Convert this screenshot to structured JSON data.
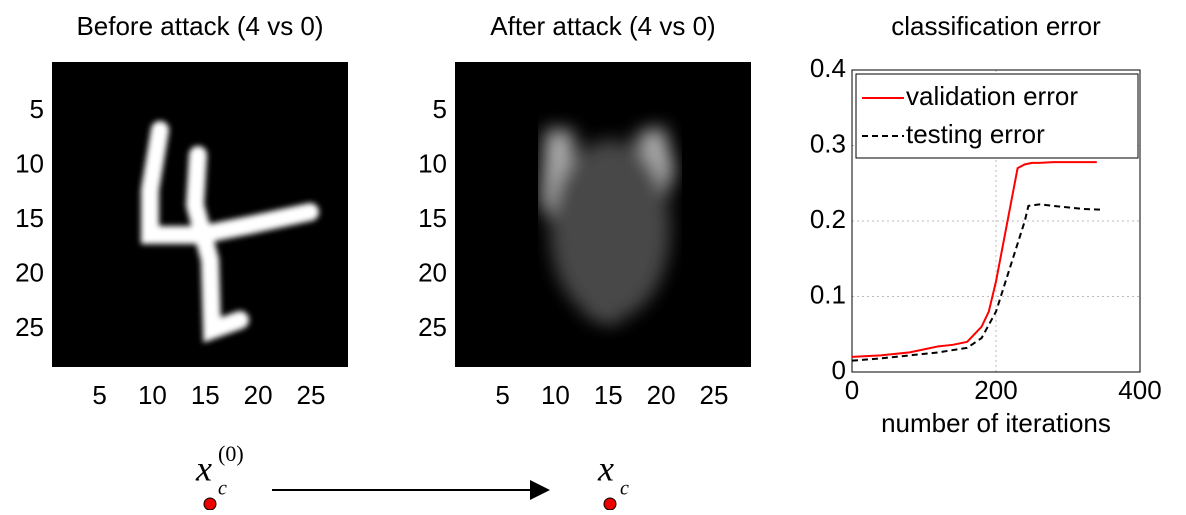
{
  "chart_data": [
    {
      "type": "image",
      "title": "Before attack (4 vs 0)",
      "xlim": [
        0.5,
        28.5
      ],
      "ylim": [
        0.5,
        28.5
      ],
      "xticks": [
        5,
        10,
        15,
        20,
        25
      ],
      "yticks": [
        5,
        10,
        15,
        20,
        25
      ],
      "colormap": "gray"
    },
    {
      "type": "image",
      "title": "After attack (4 vs 0)",
      "xlim": [
        0.5,
        28.5
      ],
      "ylim": [
        0.5,
        28.5
      ],
      "xticks": [
        5,
        10,
        15,
        20,
        25
      ],
      "yticks": [
        5,
        10,
        15,
        20,
        25
      ],
      "colormap": "gray"
    },
    {
      "type": "line",
      "title": "classification error",
      "x_label": "number of iterations",
      "xlim": [
        0,
        400
      ],
      "ylim": [
        0,
        0.4
      ],
      "xticks": [
        0,
        200,
        400
      ],
      "yticks": [
        0,
        0.1,
        0.2,
        0.3,
        0.4
      ],
      "grid": true,
      "legend": "upper-left",
      "series": [
        {
          "name": "validation error",
          "color": "#ff0000",
          "linestyle": "solid",
          "x": [
            0,
            20,
            40,
            60,
            80,
            100,
            120,
            140,
            160,
            180,
            190,
            200,
            210,
            220,
            230,
            240,
            250,
            260,
            280,
            300,
            320,
            340
          ],
          "values": [
            0.02,
            0.021,
            0.022,
            0.024,
            0.026,
            0.03,
            0.034,
            0.036,
            0.04,
            0.06,
            0.08,
            0.12,
            0.17,
            0.22,
            0.27,
            0.275,
            0.277,
            0.277,
            0.278,
            0.278,
            0.278,
            0.278
          ]
        },
        {
          "name": "testing error",
          "color": "#000000",
          "linestyle": "dashed",
          "x": [
            0,
            40,
            80,
            120,
            160,
            180,
            200,
            220,
            240,
            245,
            260,
            280,
            300,
            320,
            345
          ],
          "values": [
            0.015,
            0.018,
            0.022,
            0.026,
            0.032,
            0.045,
            0.08,
            0.14,
            0.2,
            0.22,
            0.222,
            0.22,
            0.218,
            0.216,
            0.215
          ]
        }
      ]
    }
  ],
  "diagram": {
    "from": {
      "symbol": "x",
      "subscript": "c",
      "superscript": "(0)"
    },
    "to": {
      "symbol": "x",
      "subscript": "c"
    }
  }
}
